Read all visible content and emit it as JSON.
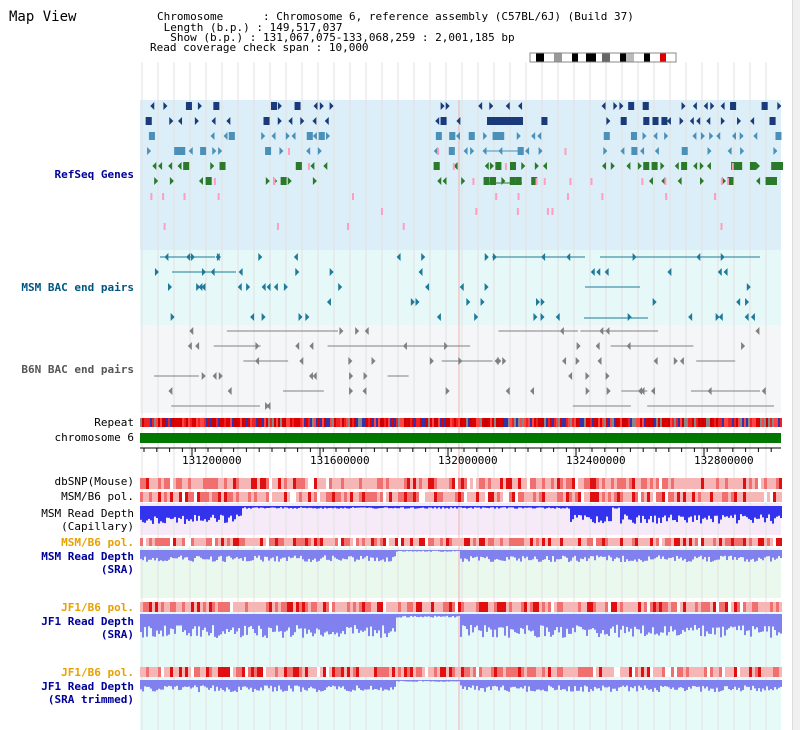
{
  "view": {
    "title": "Map View",
    "info": {
      "chromosome_label": "Chromosome      ",
      "chromosome_value": ": Chromosome 6, reference assembly (C57BL/6J) (Build 37)",
      "length_label": " Length (b.p.) ",
      "length_value": ": 149,517,037",
      "show_label": "  Show (b.p.) ",
      "show_value": ": 131,067,075-133,068,259 : 2,001,185 bp",
      "coverage_label": "Read coverage check span ",
      "coverage_value": ": 10,000"
    }
  },
  "tracks": {
    "refseq": "RefSeq Genes",
    "msm_bac": "MSM BAC end pairs",
    "b6n_bac": "B6N BAC end pairs",
    "repeat": "Repeat",
    "chromosome": "chromosome 6",
    "dbsnp": "dbSNP(Mouse)",
    "msm_pol_1": "MSM/B6 pol.",
    "msm_depth_cap_1": "MSM Read Depth",
    "msm_depth_cap_2": "(Capillary)",
    "msm_pol_2": "MSM/B6 pol.",
    "msm_depth_sra_1": "MSM Read Depth",
    "msm_depth_sra_2": "(SRA)",
    "jf1_pol_1": "JF1/B6 pol.",
    "jf1_depth_sra_1": "JF1 Read Depth",
    "jf1_depth_sra_2": "(SRA)",
    "jf1_pol_2": "JF1/B6 pol.",
    "jf1_depth_trim_1": "JF1 Read Depth",
    "jf1_depth_trim_2": "(SRA trimmed)"
  },
  "ruler": {
    "ticks": [
      "131200000",
      "131600000",
      "132000000",
      "132400000",
      "132800000"
    ]
  },
  "colors": {
    "refseq_bg": "#dceff8",
    "msm_bac_bg": "#e6f8f8",
    "b6n_bac_bg": "#f4f6f8",
    "depth_cap_bg": "#f6eaf8",
    "depth_sra_bg": "#eaf8ee",
    "depth_jf1_bg": "#e6faf8",
    "gene_dark": "#1a3a7a",
    "gene_light": "#4a90b8",
    "gene_green": "#2a7a2a",
    "bac_msm": "#1f7a9a",
    "bac_b6n": "#808080",
    "chrom_green": "#007700",
    "depth_blue": "#3333ee",
    "depth_light": "#8080ee"
  }
}
